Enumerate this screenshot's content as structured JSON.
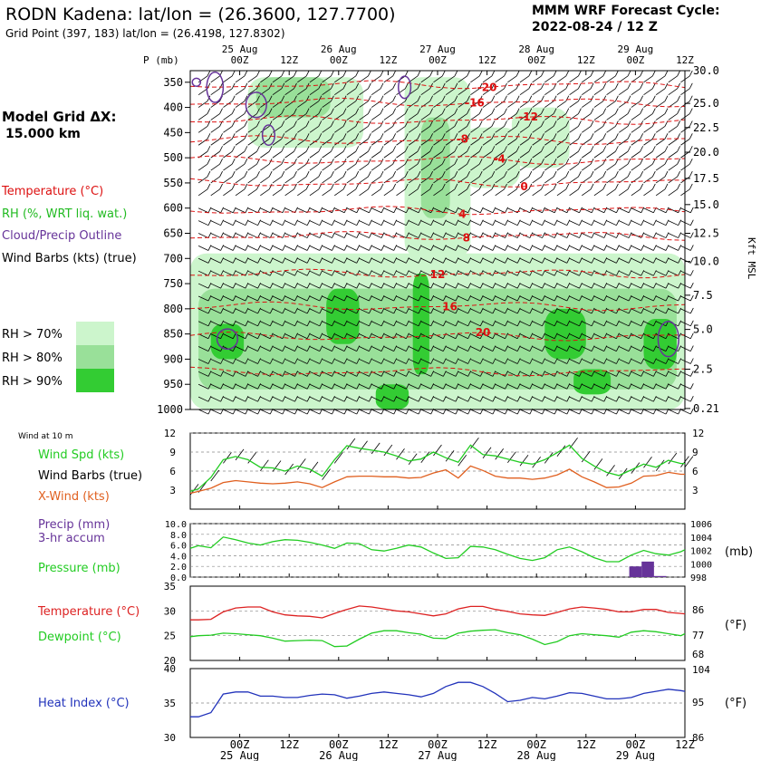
{
  "header": {
    "station_title": "RODN Kadena:  lat/lon = (26.3600, 127.7700)",
    "grid_point": "Grid Point (397, 183) lat/lon = (26.4198, 127.8302)",
    "model_cycle_line1": "MMM WRF Forecast Cycle:",
    "model_cycle_line2": "2022-08-24 / 12  Z"
  },
  "left_panel": {
    "model_grid_line1": "Model Grid ΔX:",
    "model_grid_line2": "15.000 km",
    "legend": [
      {
        "text": "Temperature (°C)",
        "color": "#dd1111"
      },
      {
        "text": "RH (%, WRT liq. wat.)",
        "color": "#22bb22"
      },
      {
        "text": "Cloud/Precip Outline",
        "color": "#663399"
      },
      {
        "text": "Wind Barbs (kts) (true)",
        "color": "#000000"
      }
    ],
    "rh_legend": [
      {
        "text": "RH > 70%",
        "color": "#ccf5cc"
      },
      {
        "text": "RH > 80%",
        "color": "#99e099"
      },
      {
        "text": "RH > 90%",
        "color": "#33cc33"
      }
    ]
  },
  "time_axis": {
    "labels": [
      "00Z",
      "12Z",
      "00Z",
      "12Z",
      "00Z",
      "12Z",
      "00Z",
      "12Z",
      "00Z",
      "12Z"
    ],
    "label_hours": [
      12,
      24,
      36,
      48,
      60,
      72,
      84,
      96,
      108,
      120
    ],
    "dates": [
      "25 Aug",
      "26 Aug",
      "27 Aug",
      "28 Aug",
      "29 Aug"
    ],
    "date_hours": [
      12,
      36,
      60,
      84,
      108
    ],
    "hour_range": [
      0,
      120
    ]
  },
  "chart_data": [
    {
      "type": "heatmap",
      "name": "cross-section",
      "y_left_label": "P (mb)",
      "y_right_label": "Kft MSL",
      "pressure_ticks": [
        350,
        400,
        450,
        500,
        550,
        600,
        650,
        700,
        750,
        800,
        850,
        900,
        950,
        1000
      ],
      "height_ticks": [
        "30.0",
        "25.0",
        "22.5",
        "20.0",
        "17.5",
        "15.0",
        "12.5",
        "10.0",
        "7.5",
        "5.0",
        "2.5",
        "0.21"
      ],
      "height_tick_pressure": [
        327,
        392,
        440,
        489,
        541,
        593,
        650,
        706,
        773,
        841,
        920,
        998
      ],
      "ylim": [
        1000,
        327
      ],
      "temperature_contours": [
        {
          "value": -20,
          "pressure": 355,
          "label": "-20",
          "label_hour": 72
        },
        {
          "value": -16,
          "pressure": 390,
          "label": "-16",
          "label_hour": 69
        },
        {
          "value": -12,
          "pressure": 425,
          "label": "-12",
          "label_hour": 82
        },
        {
          "value": -8,
          "pressure": 465,
          "label": "-8",
          "label_hour": 66
        },
        {
          "value": -4,
          "pressure": 505,
          "label": "-4",
          "label_hour": 75
        },
        {
          "value": 0,
          "pressure": 550,
          "label": "0",
          "label_hour": 81
        },
        {
          "value": 4,
          "pressure": 605,
          "label": "4",
          "label_hour": 66
        },
        {
          "value": 8,
          "pressure": 655,
          "label": "8",
          "label_hour": 67
        },
        {
          "value": 12,
          "pressure": 730,
          "label": "12",
          "label_hour": 60
        },
        {
          "value": 16,
          "pressure": 795,
          "label": "16",
          "label_hour": 63
        },
        {
          "value": 20,
          "pressure": 855,
          "label": "20",
          "label_hour": 71
        },
        {
          "value": 24,
          "pressure": 925,
          "label": "",
          "label_hour": 0
        }
      ],
      "rh_regions": [
        {
          "level": 70,
          "h0": 14,
          "h1": 42,
          "p0": 340,
          "p1": 480
        },
        {
          "level": 80,
          "h0": 16,
          "h1": 34,
          "p0": 340,
          "p1": 420
        },
        {
          "level": 70,
          "h0": 52,
          "h1": 68,
          "p0": 340,
          "p1": 700
        },
        {
          "level": 80,
          "h0": 56,
          "h1": 63,
          "p0": 420,
          "p1": 620
        },
        {
          "level": 70,
          "h0": 66,
          "h1": 80,
          "p0": 440,
          "p1": 560
        },
        {
          "level": 70,
          "h0": 78,
          "h1": 92,
          "p0": 400,
          "p1": 520
        },
        {
          "level": 70,
          "h0": 0,
          "h1": 120,
          "p0": 690,
          "p1": 1000
        },
        {
          "level": 80,
          "h0": 2,
          "h1": 118,
          "p0": 760,
          "p1": 960
        },
        {
          "level": 90,
          "h0": 5,
          "h1": 13,
          "p0": 830,
          "p1": 900
        },
        {
          "level": 90,
          "h0": 33,
          "h1": 41,
          "p0": 760,
          "p1": 870
        },
        {
          "level": 90,
          "h0": 54,
          "h1": 58,
          "p0": 730,
          "p1": 930
        },
        {
          "level": 90,
          "h0": 86,
          "h1": 96,
          "p0": 800,
          "p1": 900
        },
        {
          "level": 90,
          "h0": 110,
          "h1": 118,
          "p0": 820,
          "p1": 920
        },
        {
          "level": 90,
          "h0": 45,
          "h1": 53,
          "p0": 950,
          "p1": 1000
        },
        {
          "level": 90,
          "h0": 93,
          "h1": 102,
          "p0": 920,
          "p1": 970
        }
      ],
      "cloud_outlines": [
        {
          "hour": 1.5,
          "pressure": 350,
          "rx": 1,
          "ry": 8
        },
        {
          "hour": 6,
          "pressure": 360,
          "rx": 2,
          "ry": 30
        },
        {
          "hour": 16,
          "pressure": 395,
          "rx": 2.5,
          "ry": 25
        },
        {
          "hour": 19,
          "pressure": 455,
          "rx": 1.5,
          "ry": 20
        },
        {
          "hour": 52,
          "pressure": 360,
          "rx": 1.5,
          "ry": 22
        },
        {
          "hour": 9,
          "pressure": 860,
          "rx": 2.5,
          "ry": 20
        },
        {
          "hour": 116,
          "pressure": 860,
          "rx": 2.5,
          "ry": 35
        }
      ]
    },
    {
      "type": "line",
      "name": "wind",
      "title": "Wind at 10 m",
      "y_left_ticks": [
        3,
        6,
        9,
        12
      ],
      "y_right_ticks": [
        3,
        6,
        9,
        12
      ],
      "ylim": [
        0,
        12
      ],
      "x": [
        -1,
        2,
        5,
        8,
        11,
        14,
        17,
        20,
        23,
        26,
        29,
        32,
        35,
        38,
        41,
        44,
        47,
        50,
        53,
        56,
        59,
        62,
        65,
        68,
        71,
        74,
        77,
        80,
        83,
        86,
        89,
        92,
        95,
        98,
        101,
        104,
        107,
        110,
        113,
        116,
        119,
        121
      ],
      "series": [
        {
          "name": "Wind Spd (kts)",
          "color": "#22cc22",
          "values": [
            2.8,
            3.2,
            5.0,
            7.8,
            8.3,
            7.8,
            6.6,
            6.5,
            6.0,
            6.8,
            6.3,
            5.2,
            7.8,
            10.0,
            9.6,
            9.3,
            9.0,
            8.4,
            7.6,
            7.9,
            9.0,
            8.1,
            7.4,
            10.1,
            8.6,
            8.4,
            7.9,
            7.4,
            7.1,
            7.8,
            8.9,
            10.1,
            8.0,
            6.8,
            5.8,
            5.3,
            6.2,
            7.1,
            6.6,
            7.7,
            7.2,
            7.2
          ]
        },
        {
          "name": "X-Wind (kts)",
          "color": "#e06020",
          "values": [
            2.5,
            2.8,
            3.3,
            4.2,
            4.5,
            4.3,
            4.1,
            4.0,
            4.1,
            4.3,
            4.0,
            3.4,
            4.3,
            5.1,
            5.2,
            5.2,
            5.1,
            5.1,
            4.9,
            5.0,
            5.7,
            6.2,
            4.9,
            6.8,
            6.1,
            5.2,
            4.9,
            4.9,
            4.7,
            4.9,
            5.4,
            6.3,
            5.1,
            4.3,
            3.4,
            3.5,
            4.1,
            5.2,
            5.3,
            5.8,
            5.5,
            5.5
          ]
        }
      ],
      "barb_label": "Wind Barbs (true)"
    },
    {
      "type": "line",
      "name": "pressure-precip",
      "y_left_label": "Precip (mm) 3-hr accum",
      "y_left_ticks": [
        "0.0",
        "2.0",
        "4.0",
        "6.0",
        "8.0",
        "10.0"
      ],
      "y_right_ticks": [
        "998",
        "1000",
        "1002",
        "1004",
        "1006"
      ],
      "y_right_unit": "(mb)",
      "precip_lim": [
        0,
        10
      ],
      "pressure_lim": [
        998,
        1006
      ],
      "x": [
        -1,
        2,
        5,
        8,
        11,
        14,
        17,
        20,
        23,
        26,
        29,
        32,
        35,
        38,
        41,
        44,
        47,
        50,
        53,
        56,
        59,
        62,
        65,
        68,
        71,
        74,
        77,
        80,
        83,
        86,
        89,
        92,
        95,
        98,
        101,
        104,
        107,
        110,
        113,
        116,
        119,
        121
      ],
      "series": [
        {
          "name": "Pressure (mb)",
          "color": "#22cc22",
          "values": [
            1002.3,
            1002.7,
            1002.4,
            1004.0,
            1003.6,
            1003.1,
            1002.8,
            1003.3,
            1003.6,
            1003.5,
            1003.2,
            1002.8,
            1002.3,
            1003.1,
            1003.0,
            1002.1,
            1001.9,
            1002.3,
            1002.8,
            1002.5,
            1001.6,
            1000.8,
            1000.9,
            1002.6,
            1002.5,
            1002.1,
            1001.4,
            1000.8,
            1000.5,
            1000.9,
            1002.1,
            1002.5,
            1001.8,
            1000.9,
            1000.3,
            1000.3,
            1001.3,
            1002.0,
            1001.5,
            1001.3,
            1001.8,
            1002.1
          ]
        }
      ],
      "precip_bars": [
        {
          "hour": 108,
          "value": 2.0
        },
        {
          "hour": 111,
          "value": 2.9
        },
        {
          "hour": 114,
          "value": 0.2
        }
      ],
      "pressure_label": "Pressure (mb)",
      "precip_color": "#663399"
    },
    {
      "type": "line",
      "name": "temperature",
      "y_left_ticks": [
        20,
        25,
        30,
        35
      ],
      "y_right_ticks": [
        68,
        77,
        86
      ],
      "y_right_unit": "(°F)",
      "ylim": [
        20,
        35
      ],
      "x": [
        -1,
        2,
        5,
        8,
        11,
        14,
        17,
        20,
        23,
        26,
        29,
        32,
        35,
        38,
        41,
        44,
        47,
        50,
        53,
        56,
        59,
        62,
        65,
        68,
        71,
        74,
        77,
        80,
        83,
        86,
        89,
        92,
        95,
        98,
        101,
        104,
        107,
        110,
        113,
        116,
        119,
        121
      ],
      "series": [
        {
          "name": "Temperature (°C)",
          "color": "#dd2222",
          "values": [
            28.2,
            28.2,
            28.3,
            29.8,
            30.6,
            30.8,
            30.8,
            29.8,
            29.2,
            29.0,
            28.9,
            28.6,
            29.5,
            30.3,
            31.0,
            30.8,
            30.4,
            30.0,
            29.8,
            29.4,
            29.0,
            29.4,
            30.4,
            30.9,
            30.9,
            30.3,
            29.9,
            29.4,
            29.2,
            29.1,
            29.7,
            30.4,
            30.8,
            30.6,
            30.3,
            29.8,
            29.8,
            30.3,
            30.3,
            29.7,
            29.5,
            29.4
          ]
        },
        {
          "name": "Dewpoint (°C)",
          "color": "#22cc22",
          "values": [
            24.8,
            25.0,
            25.1,
            25.5,
            25.4,
            25.2,
            25.0,
            24.5,
            23.9,
            24.0,
            24.1,
            24.0,
            22.8,
            22.9,
            24.3,
            25.5,
            26.0,
            26.0,
            25.6,
            25.3,
            24.5,
            24.4,
            25.5,
            25.9,
            26.1,
            26.2,
            25.6,
            25.2,
            24.3,
            23.2,
            23.8,
            25.0,
            25.4,
            25.2,
            25.0,
            24.7,
            25.7,
            26.0,
            25.8,
            25.4,
            25.0,
            25.4
          ]
        }
      ]
    },
    {
      "type": "line",
      "name": "heat-index",
      "y_left_ticks": [
        30,
        35,
        40
      ],
      "y_right_ticks": [
        86,
        95,
        104
      ],
      "y_right_unit": "(°F)",
      "ylim": [
        30,
        40
      ],
      "x": [
        -1,
        2,
        5,
        8,
        11,
        14,
        17,
        20,
        23,
        26,
        29,
        32,
        35,
        38,
        41,
        44,
        47,
        50,
        53,
        56,
        59,
        62,
        65,
        68,
        71,
        74,
        77,
        80,
        83,
        86,
        89,
        92,
        95,
        98,
        101,
        104,
        107,
        110,
        113,
        116,
        119,
        121
      ],
      "series": [
        {
          "name": "Heat Index (°C)",
          "color": "#2233bb",
          "values": [
            33.0,
            33.0,
            33.6,
            36.3,
            36.6,
            36.6,
            36.0,
            36.0,
            35.8,
            35.8,
            36.1,
            36.3,
            36.2,
            35.7,
            36.0,
            36.4,
            36.6,
            36.4,
            36.2,
            35.9,
            36.4,
            37.4,
            38.0,
            38.0,
            37.4,
            36.4,
            35.2,
            35.4,
            35.8,
            35.6,
            36.0,
            36.5,
            36.4,
            36.0,
            35.6,
            35.6,
            35.8,
            36.4,
            36.7,
            37.0,
            36.8,
            36.7
          ]
        }
      ]
    }
  ]
}
